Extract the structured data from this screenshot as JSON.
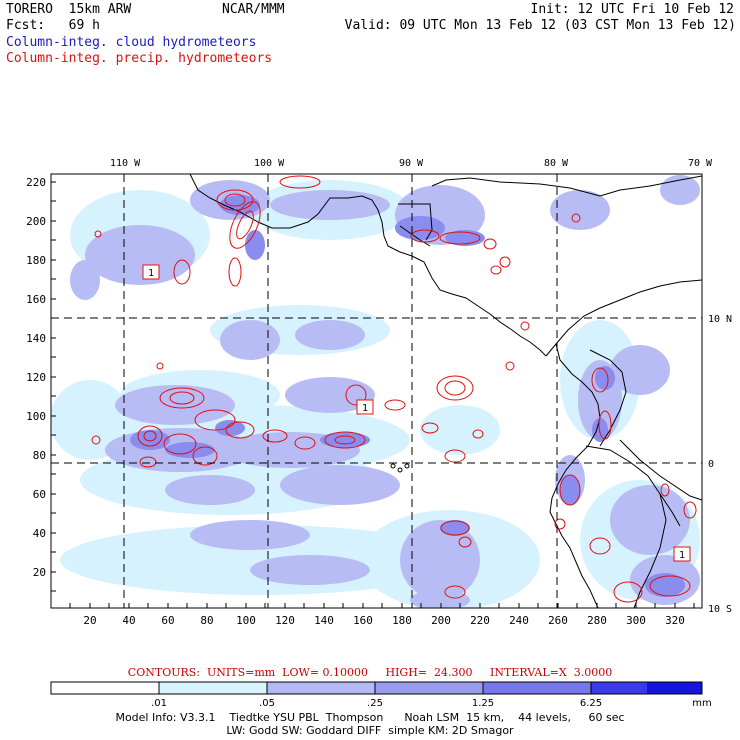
{
  "header": {
    "model": "TORERO  15km ARW",
    "center": "NCAR/MMM",
    "init": "Init: 12 UTC Fri 10 Feb 12",
    "fcst": "Fcst:   69 h",
    "valid": "Valid: 09 UTC Mon 13 Feb 12 (03 CST Mon 13 Feb 12)",
    "field1": "Column-integ. cloud hydrometeors",
    "field2": "Column-integ. precip. hydrometeors"
  },
  "map": {
    "top_lon_labels": [
      "110 W",
      "100 W",
      "90 W",
      "80 W",
      "70 W"
    ],
    "right_lat_labels": [
      "10 N",
      "0",
      "10 S"
    ],
    "y_tick_labels": [
      "20",
      "40",
      "60",
      "80",
      "100",
      "120",
      "140",
      "160",
      "180",
      "200",
      "220"
    ],
    "x_tick_labels": [
      "20",
      "40",
      "60",
      "80",
      "100",
      "120",
      "140",
      "160",
      "180",
      "200",
      "220",
      "240",
      "260",
      "280",
      "300",
      "320"
    ],
    "box_labels": [
      "1",
      "1",
      "1"
    ]
  },
  "contour_info": {
    "contours": "CONTOURS:  UNITS=mm  LOW= 0.10000     HIGH=  24.300     INTERVAL=X  3.0000"
  },
  "colorbar": {
    "labels": [
      ".01",
      ".05",
      ".25",
      "1.25",
      "6.25"
    ],
    "units": "mm",
    "colors": [
      "#ffffff",
      "#d9f4ff",
      "#b4b8f4",
      "#9a9cf0",
      "#7678ec",
      "#3a3ae8",
      "#1414e0"
    ]
  },
  "footer": {
    "line1": "Model Info: V3.3.1    Tiedtke YSU PBL  Thompson      Noah LSM  15 km,    44 levels,     60 sec",
    "line2": "LW: Godd SW: Goddard DIFF  simple KM: 2D Smagor"
  }
}
